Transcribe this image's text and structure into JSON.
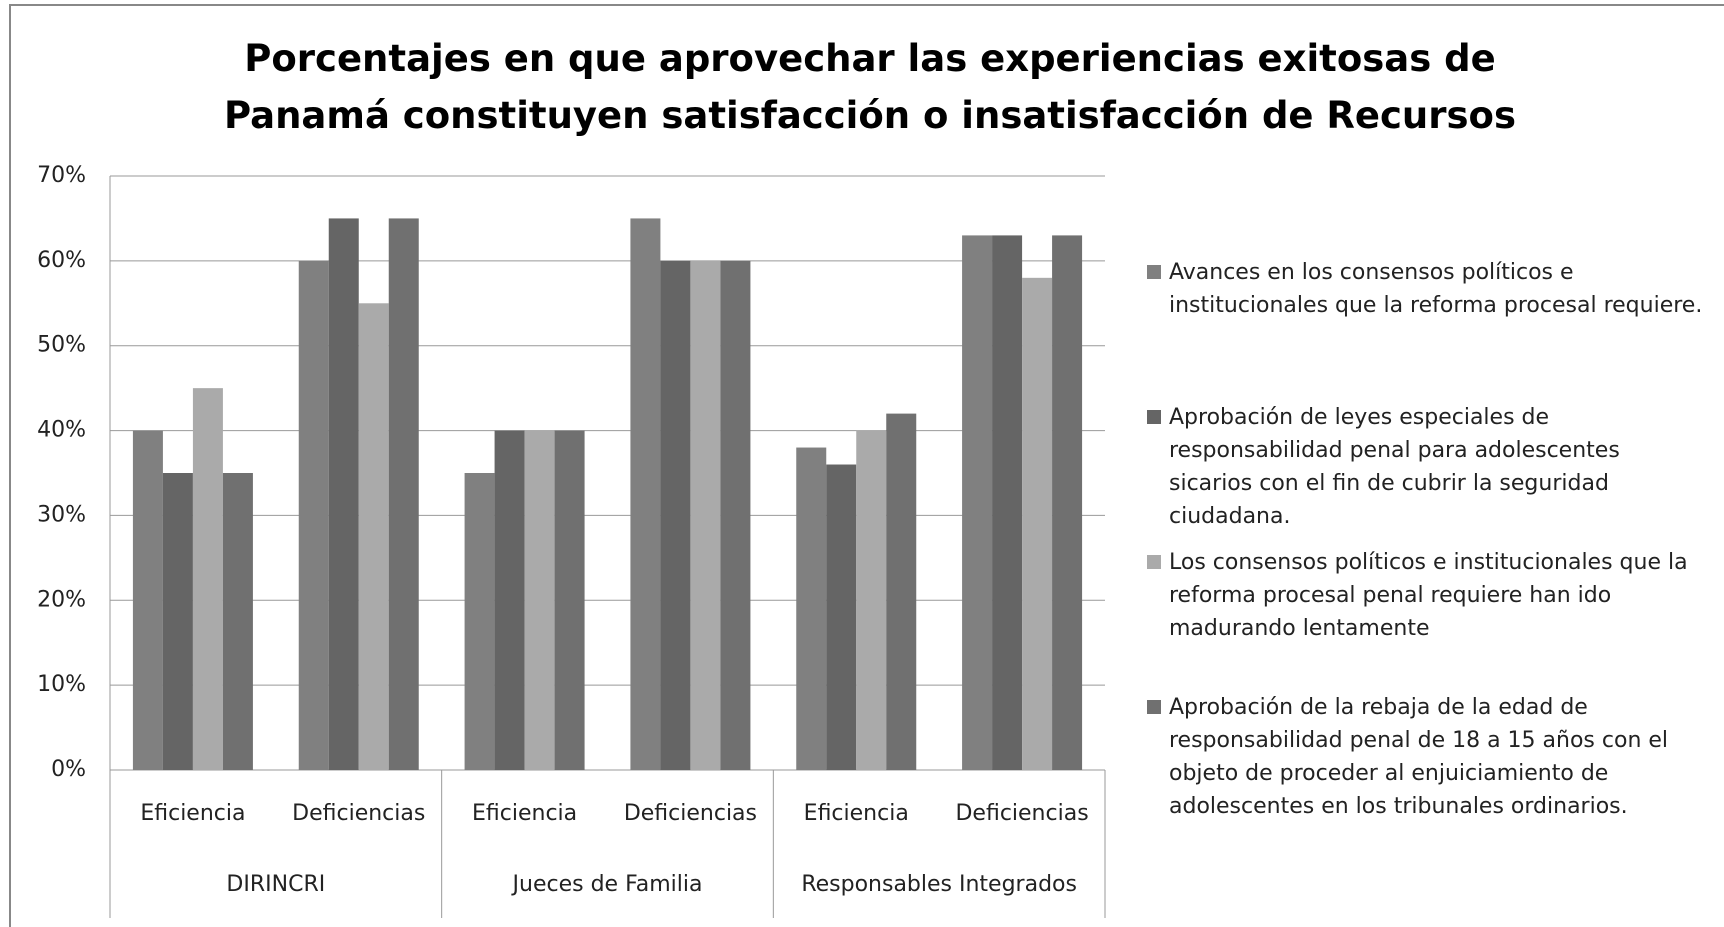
{
  "chart_data": {
    "type": "bar",
    "title": "Porcentajes en que aprovechar las experiencias exitosas de Panamá constituyen satisfacción o insatisfacción de Recursos",
    "categories": [
      "Eficiencia",
      "Deficiencias",
      "Eficiencia",
      "Deficiencias",
      "Eficiencia",
      "Deficiencias"
    ],
    "groups": [
      "DIRINCRI",
      "Jueces de Familia",
      "Responsables Integrados"
    ],
    "series": [
      {
        "name": "Avances en los consensos políticos e institucionales que la reforma procesal requiere.",
        "color": "#808080",
        "values": [
          40,
          60,
          35,
          65,
          38,
          63
        ]
      },
      {
        "name": "Aprobación de leyes especiales de responsabilidad penal para adolescentes sicarios con el fin de cubrir la seguridad ciudadana.",
        "color": "#656565",
        "values": [
          35,
          65,
          40,
          60,
          36,
          63
        ]
      },
      {
        "name": "Los consensos políticos e institucionales que la reforma procesal penal requiere han ido madurando lentamente",
        "color": "#aaaaaa",
        "values": [
          45,
          55,
          40,
          60,
          40,
          58
        ]
      },
      {
        "name": "Aprobación de la  rebaja de la edad de responsabilidad penal de 18 a 15 años con el objeto de proceder al enjuiciamiento de adolescentes en los tribunales ordinarios.",
        "color": "#707070",
        "values": [
          35,
          65,
          40,
          60,
          42,
          63
        ]
      }
    ],
    "ylim": [
      0,
      70
    ],
    "yticks": [
      {
        "value": 0,
        "label": "0%"
      },
      {
        "value": 10,
        "label": "10%"
      },
      {
        "value": 20,
        "label": "20%"
      },
      {
        "value": 30,
        "label": "30%"
      },
      {
        "value": 40,
        "label": "40%"
      },
      {
        "value": 50,
        "label": "50%"
      },
      {
        "value": 60,
        "label": "60%"
      },
      {
        "value": 70,
        "label": "70%"
      }
    ],
    "grid": true,
    "legend": "right"
  }
}
